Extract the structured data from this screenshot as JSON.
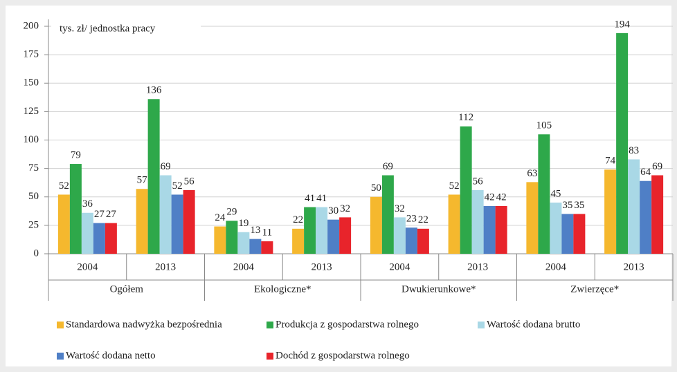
{
  "chart_data": {
    "type": "bar",
    "annotation": "tys. zł/ jednostka pracy",
    "categories": [
      "2004",
      "2013",
      "2004",
      "2013",
      "2004",
      "2013",
      "2004",
      "2013"
    ],
    "groups": [
      "Ogółem",
      "Ekologiczne*",
      "Dwukierunkowe*",
      "Zwierzęce*"
    ],
    "series": [
      {
        "name": "Standardowa nadwyżka bezpośrednia",
        "color": "#f5b82e",
        "values": [
          52,
          57,
          24,
          22,
          50,
          52,
          63,
          74
        ]
      },
      {
        "name": "Produkcja z gospodarstwa rolnego",
        "color": "#2ea84a",
        "values": [
          79,
          136,
          29,
          41,
          69,
          112,
          105,
          194
        ]
      },
      {
        "name": "Wartość dodana brutto",
        "color": "#a9d8e6",
        "values": [
          36,
          69,
          19,
          41,
          32,
          56,
          45,
          83
        ]
      },
      {
        "name": "Wartość dodana netto",
        "color": "#4f7fc6",
        "values": [
          27,
          52,
          13,
          30,
          23,
          42,
          35,
          64
        ]
      },
      {
        "name": "Dochód z gospodarstwa rolnego",
        "color": "#e8242b",
        "values": [
          27,
          56,
          11,
          32,
          22,
          42,
          35,
          69
        ]
      }
    ],
    "ylim": [
      0,
      200
    ],
    "yticks": [
      0,
      25,
      50,
      75,
      100,
      125,
      150,
      175,
      200
    ],
    "grid": true
  }
}
